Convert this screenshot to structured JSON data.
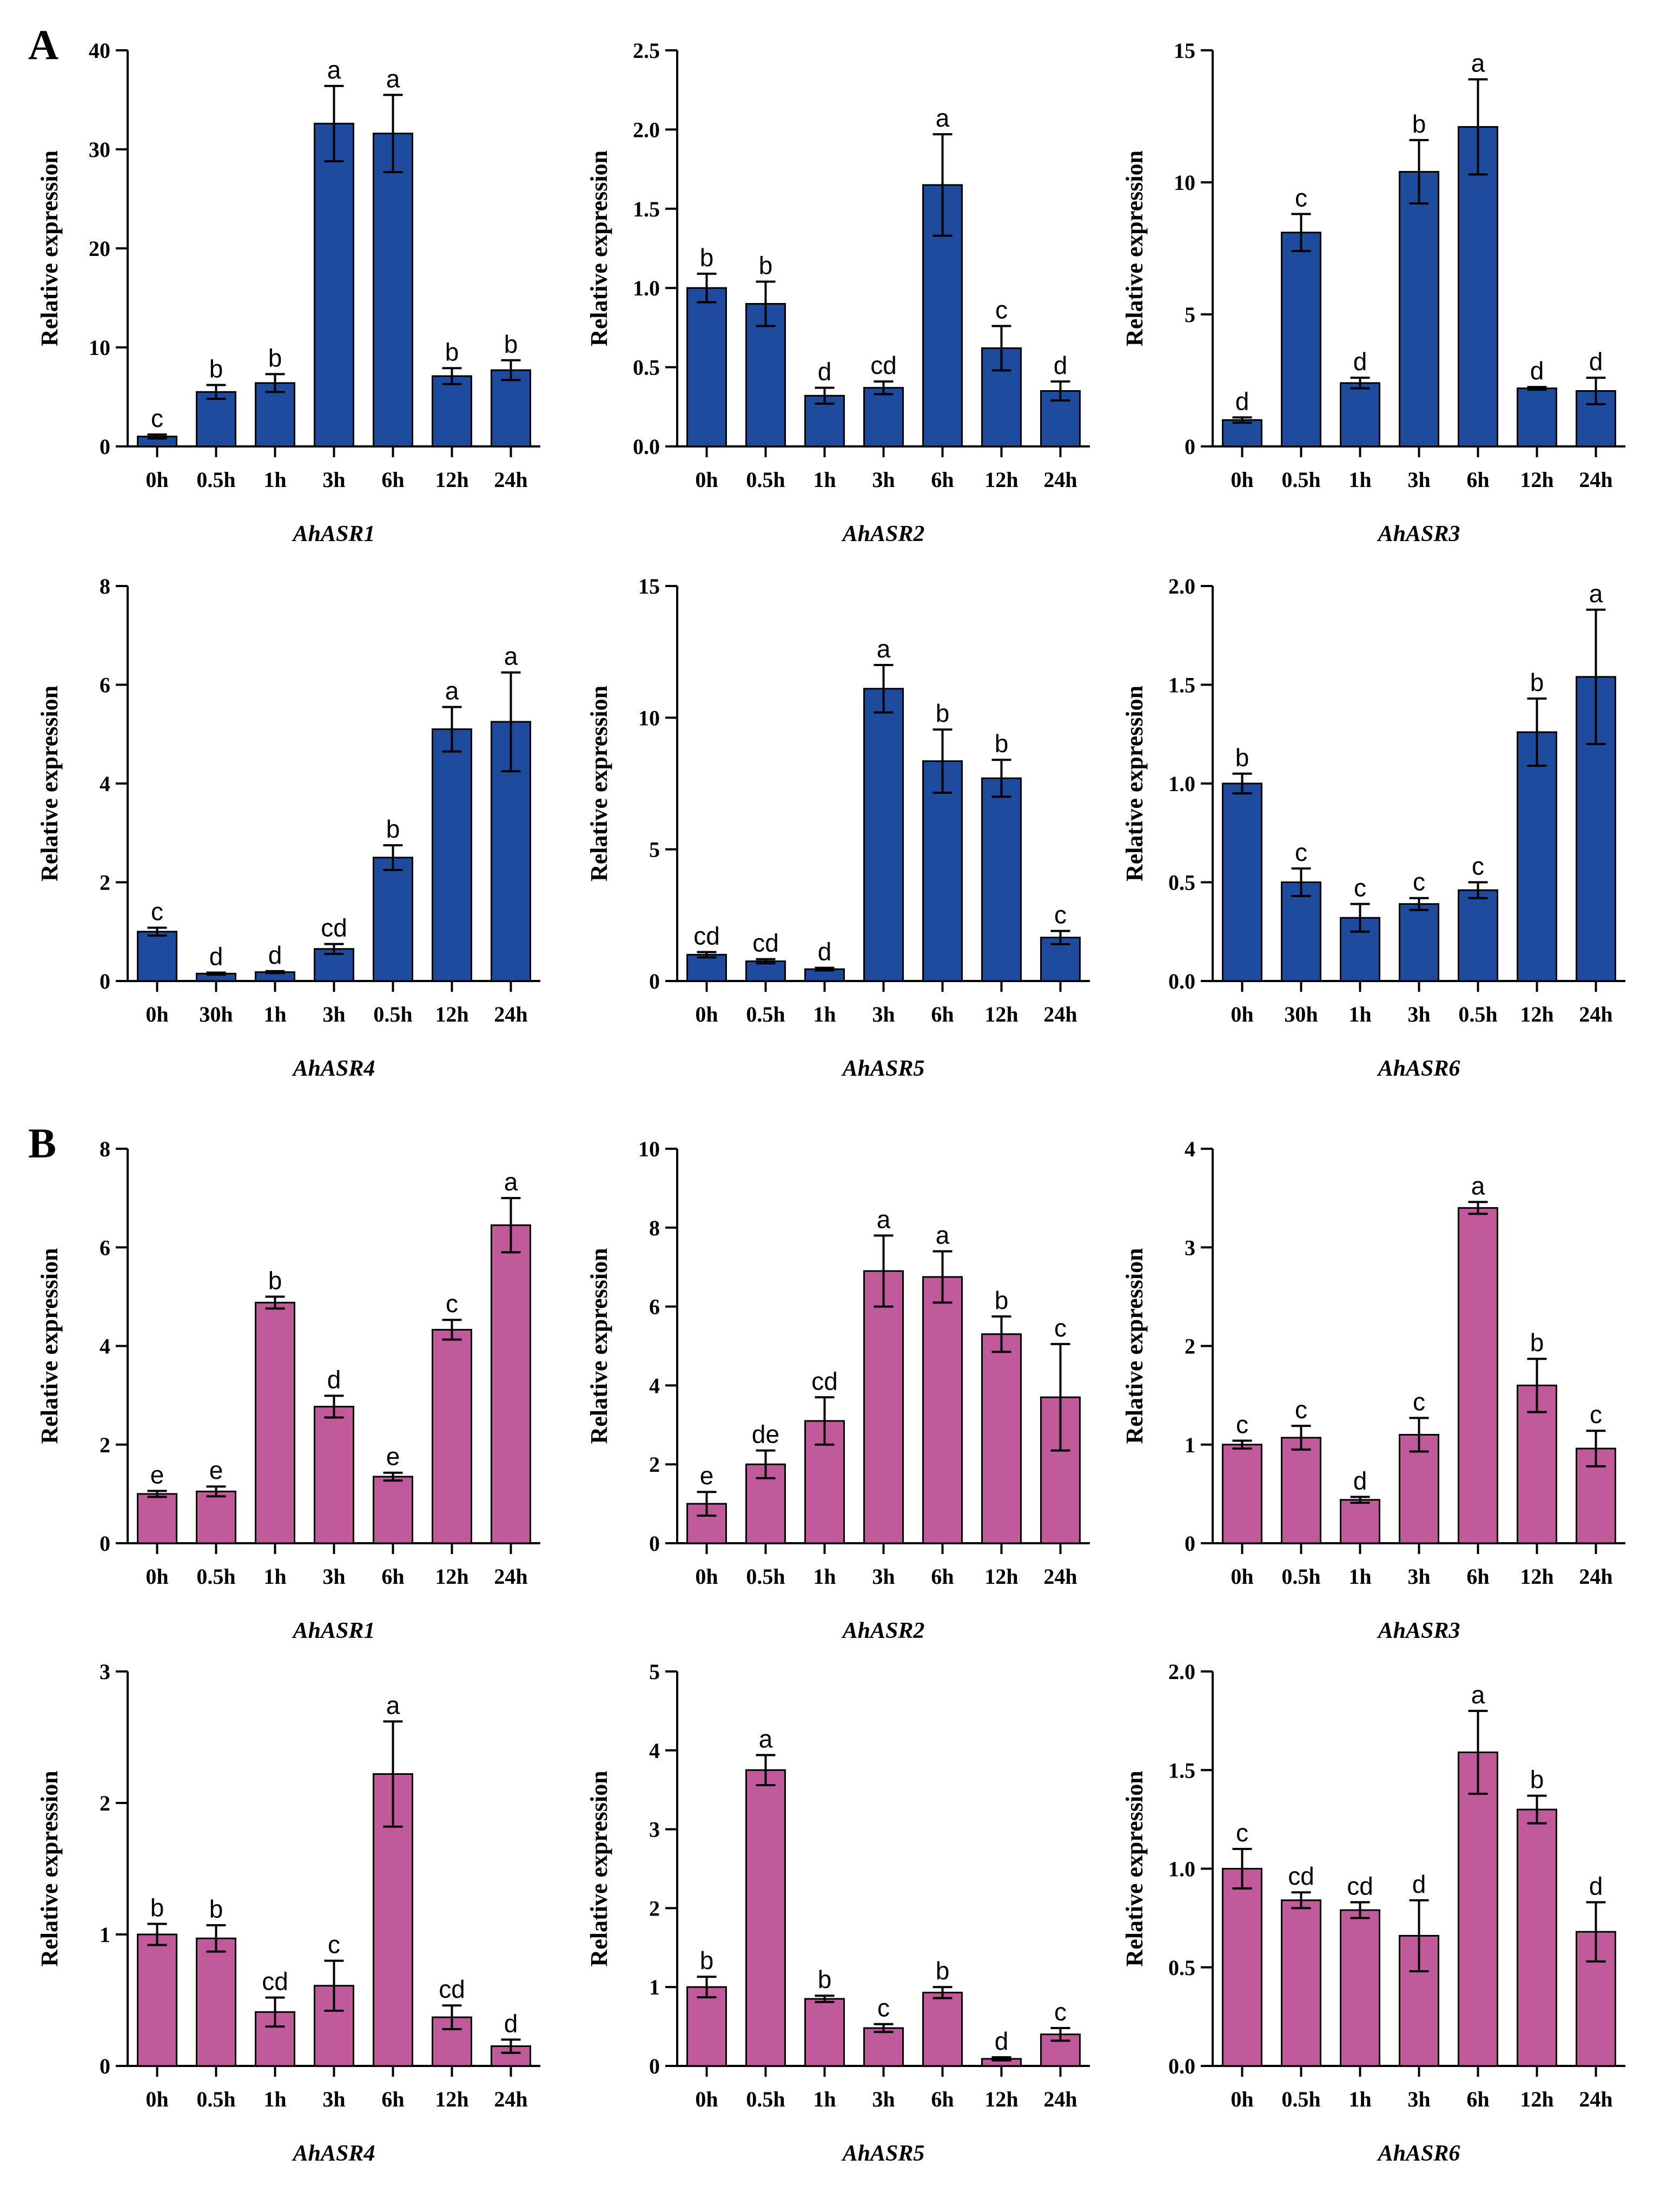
{
  "panels": [
    {
      "label": "A",
      "color": "#1f4b9e"
    },
    {
      "label": "B",
      "color": "#c15a9a"
    }
  ],
  "chart_data": [
    {
      "type": "bar",
      "panel": "A",
      "title": "AhASR1",
      "ylabel": "Relative expression",
      "xlabel": "",
      "categories": [
        "0h",
        "0.5h",
        "1h",
        "3h",
        "6h",
        "12h",
        "24h"
      ],
      "values": [
        1.0,
        5.5,
        6.4,
        32.6,
        31.6,
        7.1,
        7.7
      ],
      "errors": [
        0.2,
        0.7,
        0.9,
        3.8,
        3.9,
        0.8,
        1.0
      ],
      "letters": [
        "c",
        "b",
        "b",
        "a",
        "a",
        "b",
        "b"
      ],
      "ylim": [
        0,
        40
      ],
      "yticks": [
        "0",
        "10",
        "20",
        "30",
        "40"
      ]
    },
    {
      "type": "bar",
      "panel": "A",
      "title": "AhASR2",
      "ylabel": "Relative expression",
      "xlabel": "",
      "categories": [
        "0h",
        "0.5h",
        "1h",
        "3h",
        "6h",
        "12h",
        "24h"
      ],
      "values": [
        1.0,
        0.9,
        0.32,
        0.37,
        1.65,
        0.62,
        0.35
      ],
      "errors": [
        0.09,
        0.14,
        0.05,
        0.04,
        0.32,
        0.14,
        0.06
      ],
      "letters": [
        "b",
        "b",
        "d",
        "cd",
        "a",
        "c",
        "d"
      ],
      "ylim": [
        0,
        2.5
      ],
      "yticks": [
        "0.0",
        "0.5",
        "1.0",
        "1.5",
        "2.0",
        "2.5"
      ]
    },
    {
      "type": "bar",
      "panel": "A",
      "title": "AhASR3",
      "ylabel": "Relative expression",
      "xlabel": "",
      "categories": [
        "0h",
        "0.5h",
        "1h",
        "3h",
        "6h",
        "12h",
        "24h"
      ],
      "values": [
        1.0,
        8.1,
        2.4,
        10.4,
        12.1,
        2.2,
        2.1
      ],
      "errors": [
        0.1,
        0.7,
        0.2,
        1.2,
        1.8,
        0.05,
        0.5
      ],
      "letters": [
        "d",
        "c",
        "d",
        "b",
        "a",
        "d",
        "d"
      ],
      "ylim": [
        0,
        15
      ],
      "yticks": [
        "0",
        "5",
        "10",
        "15"
      ]
    },
    {
      "type": "bar",
      "panel": "A",
      "title": "AhASR4",
      "ylabel": "Relative expression",
      "xlabel": "",
      "categories": [
        "0h",
        "30h",
        "1h",
        "3h",
        "0.5h",
        "12h",
        "24h"
      ],
      "values": [
        1.0,
        0.15,
        0.18,
        0.65,
        2.5,
        5.1,
        5.25
      ],
      "errors": [
        0.08,
        0.02,
        0.02,
        0.1,
        0.25,
        0.45,
        1.0
      ],
      "letters": [
        "c",
        "d",
        "d",
        "cd",
        "b",
        "a",
        "a"
      ],
      "ylim": [
        0,
        8
      ],
      "yticks": [
        "0",
        "2",
        "4",
        "6",
        "8"
      ]
    },
    {
      "type": "bar",
      "panel": "A",
      "title": "AhASR5",
      "ylabel": "Relative expression",
      "xlabel": "",
      "categories": [
        "0h",
        "0.5h",
        "1h",
        "3h",
        "6h",
        "12h",
        "24h"
      ],
      "values": [
        1.0,
        0.75,
        0.45,
        11.1,
        8.35,
        7.7,
        1.65
      ],
      "errors": [
        0.1,
        0.08,
        0.05,
        0.9,
        1.2,
        0.7,
        0.25
      ],
      "letters": [
        "cd",
        "cd",
        "d",
        "a",
        "b",
        "b",
        "c"
      ],
      "ylim": [
        0,
        15
      ],
      "yticks": [
        "0",
        "5",
        "10",
        "15"
      ]
    },
    {
      "type": "bar",
      "panel": "A",
      "title": "AhASR6",
      "ylabel": "Relative expression",
      "xlabel": "",
      "categories": [
        "0h",
        "30h",
        "1h",
        "3h",
        "0.5h",
        "12h",
        "24h"
      ],
      "values": [
        1.0,
        0.5,
        0.32,
        0.39,
        0.46,
        1.26,
        1.54
      ],
      "errors": [
        0.05,
        0.07,
        0.07,
        0.03,
        0.04,
        0.17,
        0.34
      ],
      "letters": [
        "b",
        "c",
        "c",
        "c",
        "c",
        "b",
        "a"
      ],
      "ylim": [
        0,
        2.0
      ],
      "yticks": [
        "0.0",
        "0.5",
        "1.0",
        "1.5",
        "2.0"
      ]
    },
    {
      "type": "bar",
      "panel": "B",
      "title": "AhASR1",
      "ylabel": "Relative expression",
      "xlabel": "",
      "categories": [
        "0h",
        "0.5h",
        "1h",
        "3h",
        "6h",
        "12h",
        "24h"
      ],
      "values": [
        1.0,
        1.05,
        4.88,
        2.77,
        1.35,
        4.33,
        6.45
      ],
      "errors": [
        0.06,
        0.1,
        0.12,
        0.22,
        0.08,
        0.2,
        0.55
      ],
      "letters": [
        "e",
        "e",
        "b",
        "d",
        "e",
        "c",
        "a"
      ],
      "ylim": [
        0,
        8
      ],
      "yticks": [
        "0",
        "2",
        "4",
        "6",
        "8"
      ]
    },
    {
      "type": "bar",
      "panel": "B",
      "title": "AhASR2",
      "ylabel": "Relative expression",
      "xlabel": "",
      "categories": [
        "0h",
        "0.5h",
        "1h",
        "3h",
        "6h",
        "12h",
        "24h"
      ],
      "values": [
        1.0,
        2.0,
        3.1,
        6.9,
        6.75,
        5.3,
        3.7
      ],
      "errors": [
        0.3,
        0.35,
        0.6,
        0.9,
        0.65,
        0.45,
        1.35
      ],
      "letters": [
        "e",
        "de",
        "cd",
        "a",
        "a",
        "b",
        "c"
      ],
      "ylim": [
        0,
        10
      ],
      "yticks": [
        "0",
        "2",
        "4",
        "6",
        "8",
        "10"
      ]
    },
    {
      "type": "bar",
      "panel": "B",
      "title": "AhASR3",
      "ylabel": "Relative expression",
      "xlabel": "",
      "categories": [
        "0h",
        "0.5h",
        "1h",
        "3h",
        "6h",
        "12h",
        "24h"
      ],
      "values": [
        1.0,
        1.07,
        0.44,
        1.1,
        3.4,
        1.6,
        0.96
      ],
      "errors": [
        0.04,
        0.12,
        0.03,
        0.17,
        0.06,
        0.27,
        0.18
      ],
      "letters": [
        "c",
        "c",
        "d",
        "c",
        "a",
        "b",
        "c"
      ],
      "ylim": [
        0,
        4
      ],
      "yticks": [
        "0",
        "1",
        "2",
        "3",
        "4"
      ]
    },
    {
      "type": "bar",
      "panel": "B",
      "title": "AhASR4",
      "ylabel": "Relative expression",
      "xlabel": "",
      "categories": [
        "0h",
        "0.5h",
        "1h",
        "3h",
        "6h",
        "12h",
        "24h"
      ],
      "values": [
        1.0,
        0.97,
        0.41,
        0.61,
        2.22,
        0.37,
        0.15
      ],
      "errors": [
        0.08,
        0.1,
        0.11,
        0.19,
        0.4,
        0.09,
        0.05
      ],
      "letters": [
        "b",
        "b",
        "cd",
        "c",
        "a",
        "cd",
        "d"
      ],
      "ylim": [
        0,
        3
      ],
      "yticks": [
        "0",
        "1",
        "2",
        "3"
      ]
    },
    {
      "type": "bar",
      "panel": "B",
      "title": "AhASR5",
      "ylabel": "Relative expression",
      "xlabel": "",
      "categories": [
        "0h",
        "0.5h",
        "1h",
        "3h",
        "6h",
        "12h",
        "24h"
      ],
      "values": [
        1.0,
        3.75,
        0.85,
        0.48,
        0.93,
        0.09,
        0.4
      ],
      "errors": [
        0.13,
        0.19,
        0.04,
        0.05,
        0.07,
        0.02,
        0.08
      ],
      "letters": [
        "b",
        "a",
        "b",
        "c",
        "b",
        "d",
        "c"
      ],
      "ylim": [
        0,
        5
      ],
      "yticks": [
        "0",
        "1",
        "2",
        "3",
        "4",
        "5"
      ]
    },
    {
      "type": "bar",
      "panel": "B",
      "title": "AhASR6",
      "ylabel": "Relative expression",
      "xlabel": "",
      "categories": [
        "0h",
        "0.5h",
        "1h",
        "3h",
        "6h",
        "12h",
        "24h"
      ],
      "values": [
        1.0,
        0.84,
        0.79,
        0.66,
        1.59,
        1.3,
        0.68
      ],
      "errors": [
        0.1,
        0.04,
        0.04,
        0.18,
        0.21,
        0.07,
        0.15
      ],
      "letters": [
        "c",
        "cd",
        "cd",
        "d",
        "a",
        "b",
        "d"
      ],
      "ylim": [
        0,
        2.0
      ],
      "yticks": [
        "0.0",
        "0.5",
        "1.0",
        "1.5",
        "2.0"
      ]
    }
  ]
}
